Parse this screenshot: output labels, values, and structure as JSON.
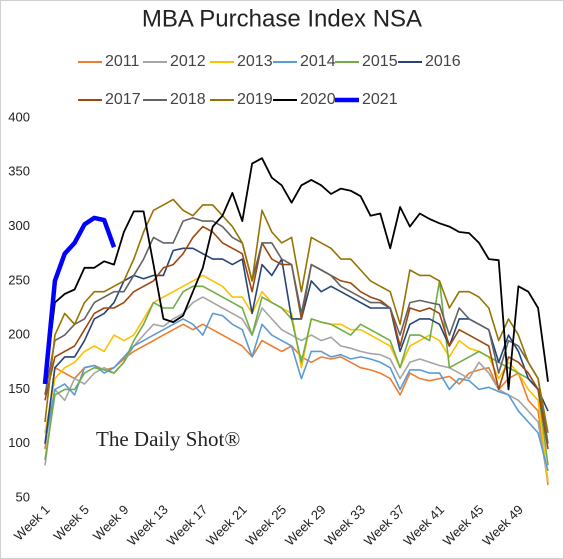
{
  "chart_data": {
    "type": "line",
    "title": "MBA Purchase Index NSA",
    "annotation": "The Daily Shot®",
    "categories": [
      "Week 1",
      null,
      null,
      null,
      "Week 5",
      null,
      null,
      null,
      "Week 9",
      null,
      null,
      null,
      "Week 13",
      null,
      null,
      null,
      "Week 17",
      null,
      null,
      null,
      "Week 21",
      null,
      null,
      null,
      "Week 25",
      null,
      null,
      null,
      "Week 29",
      null,
      null,
      null,
      "Week 33",
      null,
      null,
      null,
      "Week 37",
      null,
      null,
      null,
      "Week 41",
      null,
      null,
      null,
      "Week 45",
      null,
      null,
      null,
      "Week 49",
      null,
      null,
      null
    ],
    "ylim": [
      50,
      400
    ],
    "yticks": [
      50,
      100,
      150,
      200,
      250,
      300,
      350,
      400
    ],
    "grid": false,
    "series": [
      {
        "name": "2011",
        "color": "#ED7D31",
        "line_width": 1.6,
        "values": [
          95,
          170,
          165,
          160,
          170,
          172,
          168,
          170,
          178,
          185,
          190,
          195,
          200,
          205,
          210,
          205,
          210,
          205,
          200,
          195,
          190,
          180,
          195,
          190,
          185,
          190,
          180,
          175,
          180,
          178,
          180,
          175,
          170,
          168,
          165,
          160,
          145,
          165,
          160,
          158,
          160,
          162,
          155,
          165,
          168,
          170,
          150,
          160,
          165,
          140,
          130,
          62
        ]
      },
      {
        "name": "2012",
        "color": "#A5A5A5",
        "line_width": 1.6,
        "values": [
          80,
          150,
          140,
          160,
          155,
          165,
          170,
          165,
          175,
          190,
          200,
          210,
          208,
          215,
          220,
          230,
          235,
          230,
          225,
          220,
          215,
          200,
          225,
          215,
          205,
          200,
          195,
          200,
          195,
          198,
          190,
          188,
          185,
          183,
          182,
          178,
          160,
          175,
          178,
          175,
          172,
          170,
          165,
          160,
          175,
          165,
          150,
          145,
          140,
          130,
          120,
          65
        ]
      },
      {
        "name": "2013",
        "color": "#FFC000",
        "line_width": 1.6,
        "values": [
          110,
          160,
          170,
          175,
          185,
          190,
          185,
          200,
          195,
          200,
          215,
          230,
          235,
          240,
          245,
          250,
          255,
          250,
          245,
          235,
          235,
          220,
          240,
          230,
          225,
          220,
          170,
          215,
          212,
          210,
          210,
          205,
          205,
          200,
          195,
          190,
          170,
          190,
          195,
          200,
          195,
          180,
          195,
          188,
          185,
          180,
          160,
          175,
          165,
          150,
          140,
          65
        ]
      },
      {
        "name": "2014",
        "color": "#5B9BD5",
        "line_width": 1.6,
        "values": [
          100,
          150,
          155,
          145,
          170,
          172,
          165,
          170,
          180,
          190,
          195,
          200,
          205,
          210,
          215,
          210,
          200,
          220,
          218,
          210,
          205,
          180,
          210,
          200,
          195,
          190,
          160,
          185,
          185,
          180,
          182,
          178,
          180,
          178,
          175,
          170,
          150,
          168,
          168,
          165,
          165,
          150,
          160,
          158,
          150,
          152,
          148,
          145,
          130,
          120,
          110,
          75
        ]
      },
      {
        "name": "2015",
        "color": "#70AD47",
        "line_width": 1.6,
        "values": [
          85,
          145,
          150,
          150,
          165,
          170,
          168,
          165,
          175,
          195,
          210,
          230,
          225,
          225,
          240,
          245,
          245,
          240,
          235,
          230,
          225,
          200,
          235,
          230,
          225,
          215,
          175,
          215,
          212,
          210,
          205,
          200,
          210,
          205,
          200,
          195,
          170,
          200,
          200,
          195,
          250,
          170,
          175,
          180,
          185,
          180,
          175,
          170,
          165,
          160,
          150,
          80
        ]
      },
      {
        "name": "2016",
        "color": "#264478",
        "line_width": 1.6,
        "values": [
          100,
          170,
          180,
          180,
          195,
          215,
          220,
          230,
          250,
          255,
          252,
          255,
          255,
          278,
          280,
          280,
          275,
          270,
          270,
          265,
          270,
          220,
          265,
          255,
          270,
          215,
          215,
          250,
          240,
          245,
          240,
          235,
          230,
          225,
          225,
          225,
          185,
          210,
          215,
          215,
          210,
          190,
          215,
          215,
          210,
          205,
          175,
          200,
          185,
          160,
          150,
          130
        ]
      },
      {
        "name": "2017",
        "color": "#9E480E",
        "line_width": 1.6,
        "values": [
          140,
          180,
          185,
          190,
          205,
          220,
          225,
          225,
          230,
          240,
          245,
          250,
          262,
          265,
          275,
          290,
          300,
          295,
          285,
          280,
          275,
          240,
          285,
          270,
          265,
          265,
          215,
          265,
          260,
          255,
          250,
          248,
          240,
          235,
          232,
          225,
          190,
          225,
          222,
          225,
          220,
          190,
          205,
          200,
          195,
          190,
          150,
          180,
          175,
          165,
          150,
          95
        ]
      },
      {
        "name": "2018",
        "color": "#636363",
        "line_width": 1.6,
        "values": [
          145,
          195,
          200,
          210,
          215,
          230,
          235,
          240,
          240,
          255,
          270,
          290,
          285,
          285,
          305,
          308,
          305,
          305,
          300,
          290,
          285,
          250,
          285,
          285,
          270,
          265,
          220,
          265,
          260,
          255,
          245,
          240,
          235,
          230,
          230,
          225,
          200,
          230,
          232,
          230,
          228,
          200,
          225,
          215,
          210,
          205,
          165,
          195,
          190,
          175,
          160,
          100
        ]
      },
      {
        "name": "2019",
        "color": "#997300",
        "line_width": 1.6,
        "values": [
          120,
          200,
          220,
          210,
          230,
          240,
          240,
          245,
          250,
          270,
          295,
          315,
          320,
          325,
          315,
          310,
          320,
          320,
          310,
          300,
          285,
          250,
          315,
          295,
          285,
          290,
          240,
          290,
          285,
          280,
          270,
          270,
          260,
          250,
          245,
          240,
          210,
          260,
          255,
          255,
          250,
          225,
          240,
          240,
          235,
          225,
          195,
          215,
          200,
          175,
          160,
          110
        ]
      },
      {
        "name": "2020",
        "color": "#000000",
        "line_width": 1.8,
        "values": [
          155,
          230,
          238,
          242,
          262,
          262,
          268,
          265,
          295,
          314,
          314,
          265,
          215,
          212,
          218,
          240,
          262,
          300,
          310,
          331,
          305,
          358,
          363,
          345,
          338,
          322,
          338,
          343,
          338,
          330,
          335,
          333,
          328,
          310,
          312,
          280,
          318,
          300,
          312,
          307,
          303,
          300,
          295,
          294,
          285,
          270,
          269,
          150,
          245,
          240,
          225,
          157
        ]
      },
      {
        "name": "2021",
        "color": "#0000FF",
        "line_width": 4.5,
        "values": [
          155,
          250,
          275,
          285,
          302,
          308,
          306,
          281,
          null,
          null,
          null,
          null,
          null,
          null,
          null,
          null,
          null,
          null,
          null,
          null,
          null,
          null,
          null,
          null,
          null,
          null,
          null,
          null,
          null,
          null,
          null,
          null,
          null,
          null,
          null,
          null,
          null,
          null,
          null,
          null,
          null,
          null,
          null,
          null,
          null,
          null,
          null,
          null,
          null,
          null,
          null,
          null
        ]
      }
    ]
  }
}
